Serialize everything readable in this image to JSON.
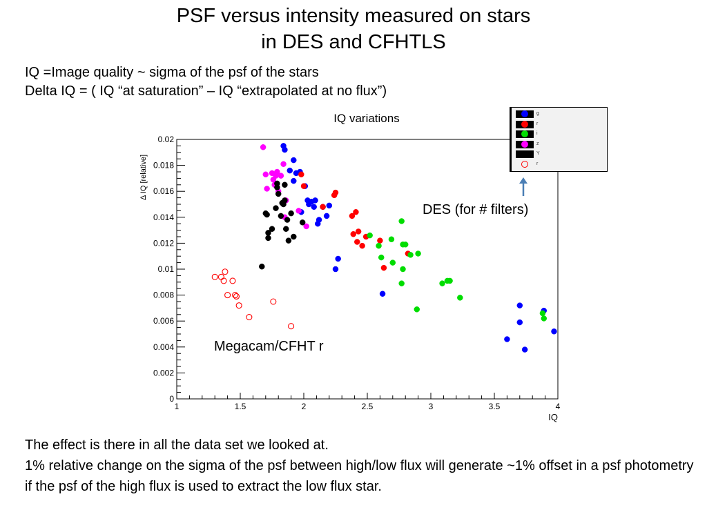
{
  "slide": {
    "title_line1": "PSF versus intensity  measured on stars",
    "title_line2": "in DES and CFHTLS",
    "intro_line1": "IQ =Image quality ~ sigma of the psf of the stars",
    "intro_line2": "Delta IQ =   ( IQ “at saturation” – IQ “extrapolated at no flux”)",
    "outro_line1": "The effect is there in all the data set we looked at.",
    "outro_line2": "1% relative change on the sigma of the psf between high/low flux will generate ~1% offset in a psf photometry if the psf of the high flux is used to extract the low flux star."
  },
  "annotations": {
    "des_label": "DES (for # filters)",
    "megacam_label": "Megacam/CFHT r",
    "arrow_color": "#4a7eb5"
  },
  "chart_data": {
    "type": "scatter",
    "title": "IQ variations",
    "xlabel": "IQ",
    "ylabel": "Δ IQ [relative]",
    "xlim": [
      1,
      4
    ],
    "ylim": [
      0,
      0.02
    ],
    "x_ticks": [
      1,
      1.5,
      2,
      2.5,
      3,
      3.5,
      4
    ],
    "x_tick_labels": [
      "1",
      "1.5",
      "2",
      "2.5",
      "3",
      "3.5",
      "4"
    ],
    "y_ticks": [
      0,
      0.002,
      0.004,
      0.006,
      0.008,
      0.01,
      0.012,
      0.014,
      0.016,
      0.018,
      0.02
    ],
    "y_tick_labels": [
      "0",
      "0.002",
      "0.004",
      "0.006",
      "0.008",
      "0.01",
      "0.012",
      "0.014",
      "0.016",
      "0.018",
      "0.02"
    ],
    "grid": false,
    "legend_position": "top-right, outside plot",
    "series": [
      {
        "name": "g",
        "color": "#0000ff",
        "marker": "filled",
        "points": [
          [
            1.84,
            0.0195
          ],
          [
            1.85,
            0.0192
          ],
          [
            1.89,
            0.0176
          ],
          [
            1.92,
            0.0184
          ],
          [
            1.94,
            0.0174
          ],
          [
            1.97,
            0.0175
          ],
          [
            1.92,
            0.0168
          ],
          [
            2.01,
            0.0164
          ],
          [
            2.03,
            0.0153
          ],
          [
            2.04,
            0.015
          ],
          [
            2.06,
            0.0152
          ],
          [
            2.08,
            0.0148
          ],
          [
            2.09,
            0.0153
          ],
          [
            2.11,
            0.0135
          ],
          [
            2.12,
            0.0138
          ],
          [
            2.15,
            0.0148
          ],
          [
            2.2,
            0.0149
          ],
          [
            2.18,
            0.0141
          ],
          [
            1.98,
            0.0144
          ],
          [
            2.27,
            0.0108
          ],
          [
            2.25,
            0.01
          ],
          [
            2.62,
            0.0081
          ],
          [
            3.6,
            0.0046
          ],
          [
            3.7,
            0.0072
          ],
          [
            3.7,
            0.0059
          ],
          [
            3.74,
            0.0038
          ],
          [
            3.89,
            0.0068
          ],
          [
            3.97,
            0.0052
          ]
        ]
      },
      {
        "name": "r",
        "color": "#ff0000",
        "marker": "filled",
        "points": [
          [
            1.98,
            0.0173
          ],
          [
            2.0,
            0.0164
          ],
          [
            2.15,
            0.0148
          ],
          [
            2.24,
            0.0157
          ],
          [
            2.25,
            0.0159
          ],
          [
            2.38,
            0.0141
          ],
          [
            2.41,
            0.0144
          ],
          [
            2.39,
            0.0127
          ],
          [
            2.42,
            0.0121
          ],
          [
            2.43,
            0.0129
          ],
          [
            2.46,
            0.0118
          ],
          [
            2.49,
            0.0125
          ],
          [
            2.6,
            0.0122
          ],
          [
            2.63,
            0.0101
          ],
          [
            2.82,
            0.0112
          ]
        ]
      },
      {
        "name": "i",
        "color": "#00dd00",
        "marker": "filled",
        "points": [
          [
            2.52,
            0.0126
          ],
          [
            2.59,
            0.0118
          ],
          [
            2.61,
            0.0109
          ],
          [
            2.69,
            0.0123
          ],
          [
            2.7,
            0.0105
          ],
          [
            2.77,
            0.0137
          ],
          [
            2.78,
            0.0119
          ],
          [
            2.8,
            0.0119
          ],
          [
            2.78,
            0.01
          ],
          [
            2.77,
            0.0089
          ],
          [
            2.84,
            0.0111
          ],
          [
            2.9,
            0.0112
          ],
          [
            2.89,
            0.0069
          ],
          [
            3.09,
            0.0089
          ],
          [
            3.13,
            0.0091
          ],
          [
            3.15,
            0.0091
          ],
          [
            3.23,
            0.0078
          ],
          [
            3.88,
            0.0066
          ],
          [
            3.89,
            0.0062
          ]
        ]
      },
      {
        "name": "z",
        "color": "#ff00ff",
        "marker": "filled",
        "points": [
          [
            1.68,
            0.0194
          ],
          [
            1.7,
            0.0173
          ],
          [
            1.71,
            0.0162
          ],
          [
            1.75,
            0.0174
          ],
          [
            1.76,
            0.0169
          ],
          [
            1.78,
            0.0172
          ],
          [
            1.79,
            0.0175
          ],
          [
            1.77,
            0.0165
          ],
          [
            1.8,
            0.016
          ],
          [
            1.82,
            0.0172
          ],
          [
            1.84,
            0.0181
          ],
          [
            1.86,
            0.0153
          ],
          [
            1.85,
            0.014
          ],
          [
            1.96,
            0.0145
          ],
          [
            2.02,
            0.0133
          ]
        ]
      },
      {
        "name": "Y",
        "color": "#000000",
        "marker": "filled",
        "points": [
          [
            1.67,
            0.0102
          ],
          [
            1.7,
            0.0143
          ],
          [
            1.71,
            0.0142
          ],
          [
            1.72,
            0.0128
          ],
          [
            1.72,
            0.0124
          ],
          [
            1.75,
            0.0131
          ],
          [
            1.78,
            0.0147
          ],
          [
            1.79,
            0.0163
          ],
          [
            1.79,
            0.0166
          ],
          [
            1.8,
            0.0158
          ],
          [
            1.82,
            0.0141
          ],
          [
            1.83,
            0.0151
          ],
          [
            1.84,
            0.015
          ],
          [
            1.85,
            0.0153
          ],
          [
            1.85,
            0.0165
          ],
          [
            1.86,
            0.0131
          ],
          [
            1.87,
            0.0138
          ],
          [
            1.88,
            0.0122
          ],
          [
            1.9,
            0.0143
          ],
          [
            1.92,
            0.0125
          ],
          [
            1.99,
            0.0136
          ]
        ]
      },
      {
        "name": "r",
        "color": "#ff0000",
        "marker": "open",
        "points": [
          [
            1.3,
            0.0094
          ],
          [
            1.35,
            0.0094
          ],
          [
            1.37,
            0.0091
          ],
          [
            1.38,
            0.0098
          ],
          [
            1.4,
            0.008
          ],
          [
            1.44,
            0.0091
          ],
          [
            1.46,
            0.008
          ],
          [
            1.47,
            0.0079
          ],
          [
            1.49,
            0.0072
          ],
          [
            1.57,
            0.0063
          ],
          [
            1.76,
            0.0075
          ],
          [
            1.9,
            0.0056
          ]
        ]
      }
    ]
  }
}
